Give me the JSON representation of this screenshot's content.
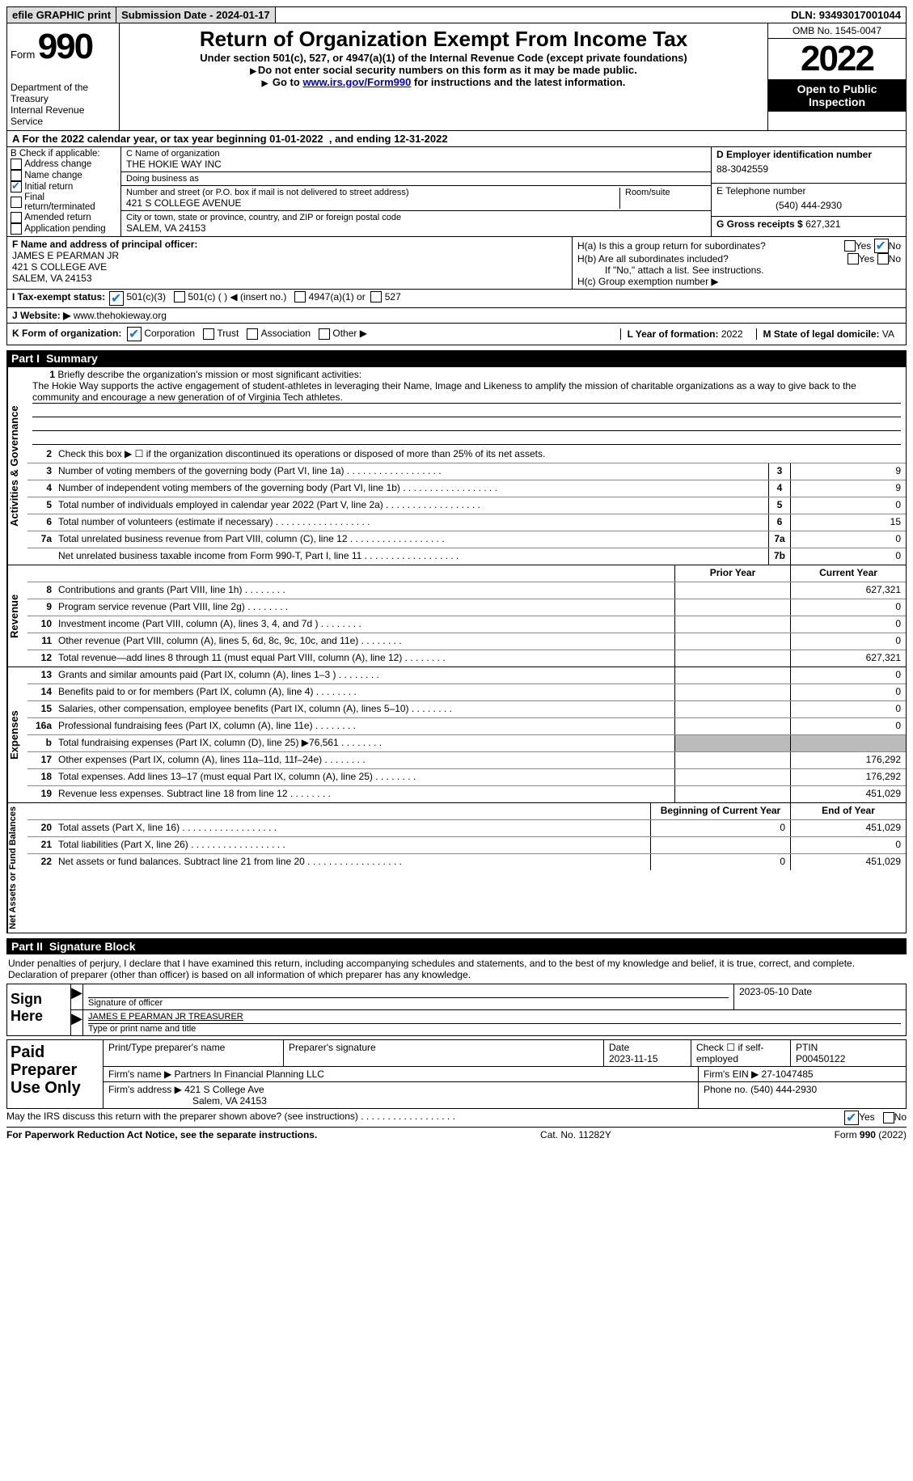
{
  "topbar": {
    "efile": "efile GRAPHIC print",
    "sub_label": "Submission Date - ",
    "sub_date": "2024-01-17",
    "dln_label": "DLN: ",
    "dln": "93493017001044"
  },
  "header": {
    "form_word": "Form",
    "form_no": "990",
    "dept": "Department of the Treasury\nInternal Revenue Service",
    "title": "Return of Organization Exempt From Income Tax",
    "sub": "Under section 501(c), 527, or 4947(a)(1) of the Internal Revenue Code (except private foundations)",
    "sub2": "Do not enter social security numbers on this form as it may be made public.",
    "sub3_pre": "Go to ",
    "sub3_link": "www.irs.gov/Form990",
    "sub3_post": " for instructions and the latest information.",
    "omb": "OMB No. 1545-0047",
    "year": "2022",
    "open": "Open to Public Inspection"
  },
  "taxyear": {
    "pre": "For the 2022 calendar year, or tax year beginning ",
    "beg": "01-01-2022",
    "mid": ", and ending ",
    "end": "12-31-2022"
  },
  "b": {
    "label": "B Check if applicable:",
    "items": [
      {
        "txt": "Address change",
        "checked": false
      },
      {
        "txt": "Name change",
        "checked": false
      },
      {
        "txt": "Initial return",
        "checked": true
      },
      {
        "txt": "Final return/terminated",
        "checked": false
      },
      {
        "txt": "Amended return",
        "checked": false
      },
      {
        "txt": "Application pending",
        "checked": false
      }
    ]
  },
  "c": {
    "name_lbl": "C Name of organization",
    "name": "THE HOKIE WAY INC",
    "dba_lbl": "Doing business as",
    "dba": "",
    "addr_lbl": "Number and street (or P.O. box if mail is not delivered to street address)",
    "room_lbl": "Room/suite",
    "addr": "421 S COLLEGE AVENUE",
    "city_lbl": "City or town, state or province, country, and ZIP or foreign postal code",
    "city": "SALEM, VA  24153"
  },
  "d": {
    "ein_lbl": "D Employer identification number",
    "ein": "88-3042559",
    "tel_lbl": "E Telephone number",
    "tel": "(540) 444-2930",
    "gross_lbl": "G Gross receipts $ ",
    "gross": "627,321"
  },
  "f": {
    "lbl": "F Name and address of principal officer:",
    "name": "JAMES E PEARMAN JR",
    "addr1": "421 S COLLEGE AVE",
    "addr2": "SALEM, VA  24153"
  },
  "h": {
    "ha_lbl": "H(a)  Is this a group return for subordinates?",
    "ha_yes": "Yes",
    "ha_no": "No",
    "hb_lbl": "H(b)  Are all subordinates included?",
    "hb_note": "If \"No,\" attach a list. See instructions.",
    "hc_lbl": "H(c)  Group exemption number ▶"
  },
  "i": {
    "lbl": "I  Tax-exempt status:",
    "o1": "501(c)(3)",
    "o2": "501(c) (  ) ◀ (insert no.)",
    "o3": "4947(a)(1) or",
    "o4": "527"
  },
  "j": {
    "lbl": "J  Website: ▶ ",
    "val": "www.thehokieway.org"
  },
  "k": {
    "lbl": "K Form of organization:",
    "o1": "Corporation",
    "o2": "Trust",
    "o3": "Association",
    "o4": "Other ▶",
    "l_lbl": "L Year of formation: ",
    "l_val": "2022",
    "m_lbl": "M State of legal domicile: ",
    "m_val": "VA"
  },
  "parts": {
    "p1": "Part I",
    "p1t": "Summary",
    "p2": "Part II",
    "p2t": "Signature Block"
  },
  "tabs": {
    "ag": "Activities & Governance",
    "rev": "Revenue",
    "exp": "Expenses",
    "na": "Net Assets or Fund Balances"
  },
  "summary": {
    "l1_lbl": "Briefly describe the organization's mission or most significant activities:",
    "l1_txt": "The Hokie Way supports the active engagement of student-athletes in leveraging their Name, Image and Likeness to amplify the mission of charitable organizations as a way to give back to the community and encourage a new generation of of Virginia Tech athletes.",
    "l2": "Check this box ▶ ☐  if the organization discontinued its operations or disposed of more than 25% of its net assets.",
    "rows_ag": [
      {
        "n": "3",
        "d": "Number of voting members of the governing body (Part VI, line 1a)",
        "box": "3",
        "val": "9"
      },
      {
        "n": "4",
        "d": "Number of independent voting members of the governing body (Part VI, line 1b)",
        "box": "4",
        "val": "9"
      },
      {
        "n": "5",
        "d": "Total number of individuals employed in calendar year 2022 (Part V, line 2a)",
        "box": "5",
        "val": "0"
      },
      {
        "n": "6",
        "d": "Total number of volunteers (estimate if necessary)",
        "box": "6",
        "val": "15"
      },
      {
        "n": "7a",
        "d": "Total unrelated business revenue from Part VIII, column (C), line 12",
        "box": "7a",
        "val": "0"
      },
      {
        "n": "",
        "d": "Net unrelated business taxable income from Form 990-T, Part I, line 11",
        "box": "7b",
        "val": "0"
      }
    ],
    "py_hdr": "Prior Year",
    "cy_hdr": "Current Year",
    "rows_rev": [
      {
        "n": "8",
        "d": "Contributions and grants (Part VIII, line 1h)",
        "py": "",
        "cy": "627,321"
      },
      {
        "n": "9",
        "d": "Program service revenue (Part VIII, line 2g)",
        "py": "",
        "cy": "0"
      },
      {
        "n": "10",
        "d": "Investment income (Part VIII, column (A), lines 3, 4, and 7d )",
        "py": "",
        "cy": "0"
      },
      {
        "n": "11",
        "d": "Other revenue (Part VIII, column (A), lines 5, 6d, 8c, 9c, 10c, and 11e)",
        "py": "",
        "cy": "0"
      },
      {
        "n": "12",
        "d": "Total revenue—add lines 8 through 11 (must equal Part VIII, column (A), line 12)",
        "py": "",
        "cy": "627,321"
      }
    ],
    "rows_exp": [
      {
        "n": "13",
        "d": "Grants and similar amounts paid (Part IX, column (A), lines 1–3 )",
        "py": "",
        "cy": "0"
      },
      {
        "n": "14",
        "d": "Benefits paid to or for members (Part IX, column (A), line 4)",
        "py": "",
        "cy": "0"
      },
      {
        "n": "15",
        "d": "Salaries, other compensation, employee benefits (Part IX, column (A), lines 5–10)",
        "py": "",
        "cy": "0"
      },
      {
        "n": "16a",
        "d": "Professional fundraising fees (Part IX, column (A), line 11e)",
        "py": "",
        "cy": "0"
      },
      {
        "n": "b",
        "d": "Total fundraising expenses (Part IX, column (D), line 25) ▶76,561",
        "py": "GRAY",
        "cy": "GRAY"
      },
      {
        "n": "17",
        "d": "Other expenses (Part IX, column (A), lines 11a–11d, 11f–24e)",
        "py": "",
        "cy": "176,292"
      },
      {
        "n": "18",
        "d": "Total expenses. Add lines 13–17 (must equal Part IX, column (A), line 25)",
        "py": "",
        "cy": "176,292"
      },
      {
        "n": "19",
        "d": "Revenue less expenses. Subtract line 18 from line 12",
        "py": "",
        "cy": "451,029"
      }
    ],
    "by_hdr": "Beginning of Current Year",
    "ey_hdr": "End of Year",
    "rows_na": [
      {
        "n": "20",
        "d": "Total assets (Part X, line 16)",
        "py": "0",
        "cy": "451,029"
      },
      {
        "n": "21",
        "d": "Total liabilities (Part X, line 26)",
        "py": "",
        "cy": "0"
      },
      {
        "n": "22",
        "d": "Net assets or fund balances. Subtract line 21 from line 20",
        "py": "0",
        "cy": "451,029"
      }
    ]
  },
  "sig": {
    "penalties": "Under penalties of perjury, I declare that I have examined this return, including accompanying schedules and statements, and to the best of my knowledge and belief, it is true, correct, and complete. Declaration of preparer (other than officer) is based on all information of which preparer has any knowledge.",
    "sign_here": "Sign Here",
    "sig_of_officer": "Signature of officer",
    "sig_date": "2023-05-10",
    "date_lbl": "Date",
    "name_title": "JAMES E PEARMAN JR  TREASURER",
    "name_title_lbl": "Type or print name and title"
  },
  "paid": {
    "lbl": "Paid Preparer Use Only",
    "r1": {
      "c1_lbl": "Print/Type preparer's name",
      "c2_lbl": "Preparer's signature",
      "c3_lbl": "Date",
      "c3_val": "2023-11-15",
      "c4_lbl": "Check ☐ if self-employed",
      "c5_lbl": "PTIN",
      "c5_val": "P00450122"
    },
    "r2": {
      "c1_lbl": "Firm's name     ▶ ",
      "c1_val": "Partners In Financial Planning LLC",
      "c2_lbl": "Firm's EIN ▶ ",
      "c2_val": "27-1047485"
    },
    "r3": {
      "c1_lbl": "Firm's address ▶ ",
      "c1_val": "421 S College Ave",
      "c1_val2": "Salem, VA  24153",
      "c2_lbl": "Phone no. ",
      "c2_val": "(540) 444-2930"
    }
  },
  "bottom": {
    "discuss": "May the IRS discuss this return with the preparer shown above? (see instructions)",
    "yes": "Yes",
    "no": "No",
    "pra": "For Paperwork Reduction Act Notice, see the separate instructions.",
    "cat": "Cat. No. 11282Y",
    "form": "Form 990 (2022)"
  }
}
